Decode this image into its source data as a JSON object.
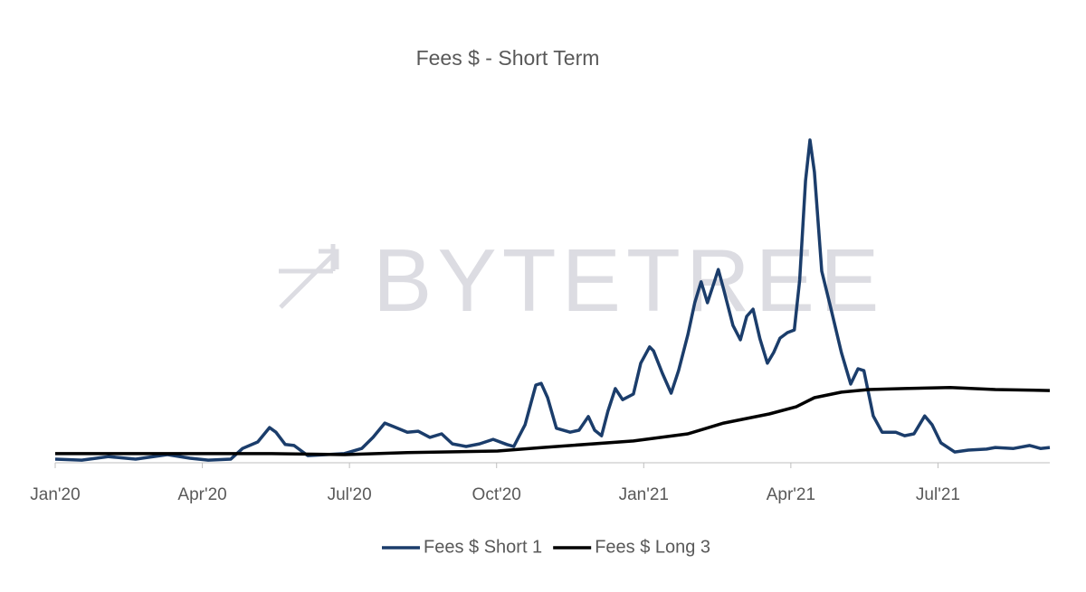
{
  "chart_data": {
    "type": "line",
    "title": "Fees $ - Short Term",
    "watermark": "BYTETREE",
    "xlim": [
      0,
      20.28
    ],
    "ylim": [
      0,
      100
    ],
    "xticks": [
      {
        "value": 0,
        "label": "Jan'20"
      },
      {
        "value": 3,
        "label": "Apr'20"
      },
      {
        "value": 6,
        "label": "Jul'20"
      },
      {
        "value": 9,
        "label": "Oct'20"
      },
      {
        "value": 12,
        "label": "Jan'21"
      },
      {
        "value": 15,
        "label": "Apr'21"
      },
      {
        "value": 18,
        "label": "Jul'21"
      }
    ],
    "series": [
      {
        "name": "Fees $ Short 1",
        "color": "#1b3d6b",
        "x": [
          0,
          0.54,
          1.09,
          1.64,
          2.29,
          2.75,
          3.12,
          3.58,
          3.82,
          4.13,
          4.37,
          4.5,
          4.69,
          4.87,
          5.15,
          5.52,
          5.89,
          6.25,
          6.48,
          6.72,
          6.9,
          7.18,
          7.4,
          7.64,
          7.88,
          8.1,
          8.38,
          8.65,
          8.93,
          9.21,
          9.35,
          9.58,
          9.8,
          9.91,
          10.04,
          10.22,
          10.5,
          10.68,
          10.87,
          11.0,
          11.14,
          11.27,
          11.42,
          11.57,
          11.79,
          11.94,
          12.12,
          12.2,
          12.38,
          12.56,
          12.71,
          12.9,
          13.04,
          13.17,
          13.3,
          13.45,
          13.52,
          13.63,
          13.82,
          13.97,
          14.1,
          14.23,
          14.37,
          14.52,
          14.65,
          14.78,
          14.93,
          15.07,
          15.18,
          15.3,
          15.39,
          15.48,
          15.63,
          15.81,
          16.03,
          16.22,
          16.37,
          16.49,
          16.68,
          16.86,
          17.14,
          17.32,
          17.51,
          17.73,
          17.88,
          18.06,
          18.34,
          18.62,
          18.99,
          19.17,
          19.54,
          19.87,
          20.09,
          20.28
        ],
        "values": [
          1.1,
          0.8,
          1.9,
          1.1,
          2.5,
          1.4,
          0.8,
          1.1,
          4.4,
          6.4,
          10.8,
          9.4,
          5.6,
          5.3,
          2.2,
          2.5,
          2.8,
          4.4,
          7.8,
          12.2,
          11.1,
          9.4,
          9.7,
          7.8,
          8.9,
          5.8,
          5.0,
          5.8,
          7.2,
          5.6,
          5.0,
          11.7,
          23.9,
          24.4,
          20.0,
          10.6,
          9.4,
          10.0,
          14.2,
          10.0,
          8.3,
          15.8,
          22.8,
          19.4,
          21.1,
          30.6,
          35.6,
          34.4,
          27.5,
          21.4,
          28.3,
          39.4,
          49.2,
          55.6,
          49.2,
          56.1,
          59.4,
          53.3,
          42.2,
          37.8,
          45.0,
          47.2,
          38.1,
          30.6,
          33.9,
          38.3,
          40.0,
          40.8,
          56.1,
          86.7,
          99.2,
          89.4,
          58.9,
          47.8,
          33.9,
          24.2,
          28.9,
          28.3,
          14.4,
          9.4,
          9.4,
          8.3,
          8.9,
          14.4,
          11.7,
          6.1,
          3.3,
          3.9,
          4.2,
          4.7,
          4.4,
          5.3,
          4.4,
          4.7
        ]
      },
      {
        "name": "Fees $ Long 3",
        "color": "#000000",
        "x": [
          0,
          2.56,
          4.41,
          5.89,
          7.18,
          9.02,
          9.94,
          11.79,
          12.9,
          13.63,
          14.56,
          15.11,
          15.48,
          16.03,
          16.59,
          17.32,
          18.25,
          19.17,
          20.28
        ],
        "values": [
          2.8,
          2.8,
          2.8,
          2.5,
          3.1,
          3.6,
          4.7,
          6.7,
          8.9,
          12.2,
          15.0,
          17.2,
          20.0,
          21.7,
          22.5,
          22.8,
          23.1,
          22.5,
          22.2
        ]
      }
    ]
  }
}
